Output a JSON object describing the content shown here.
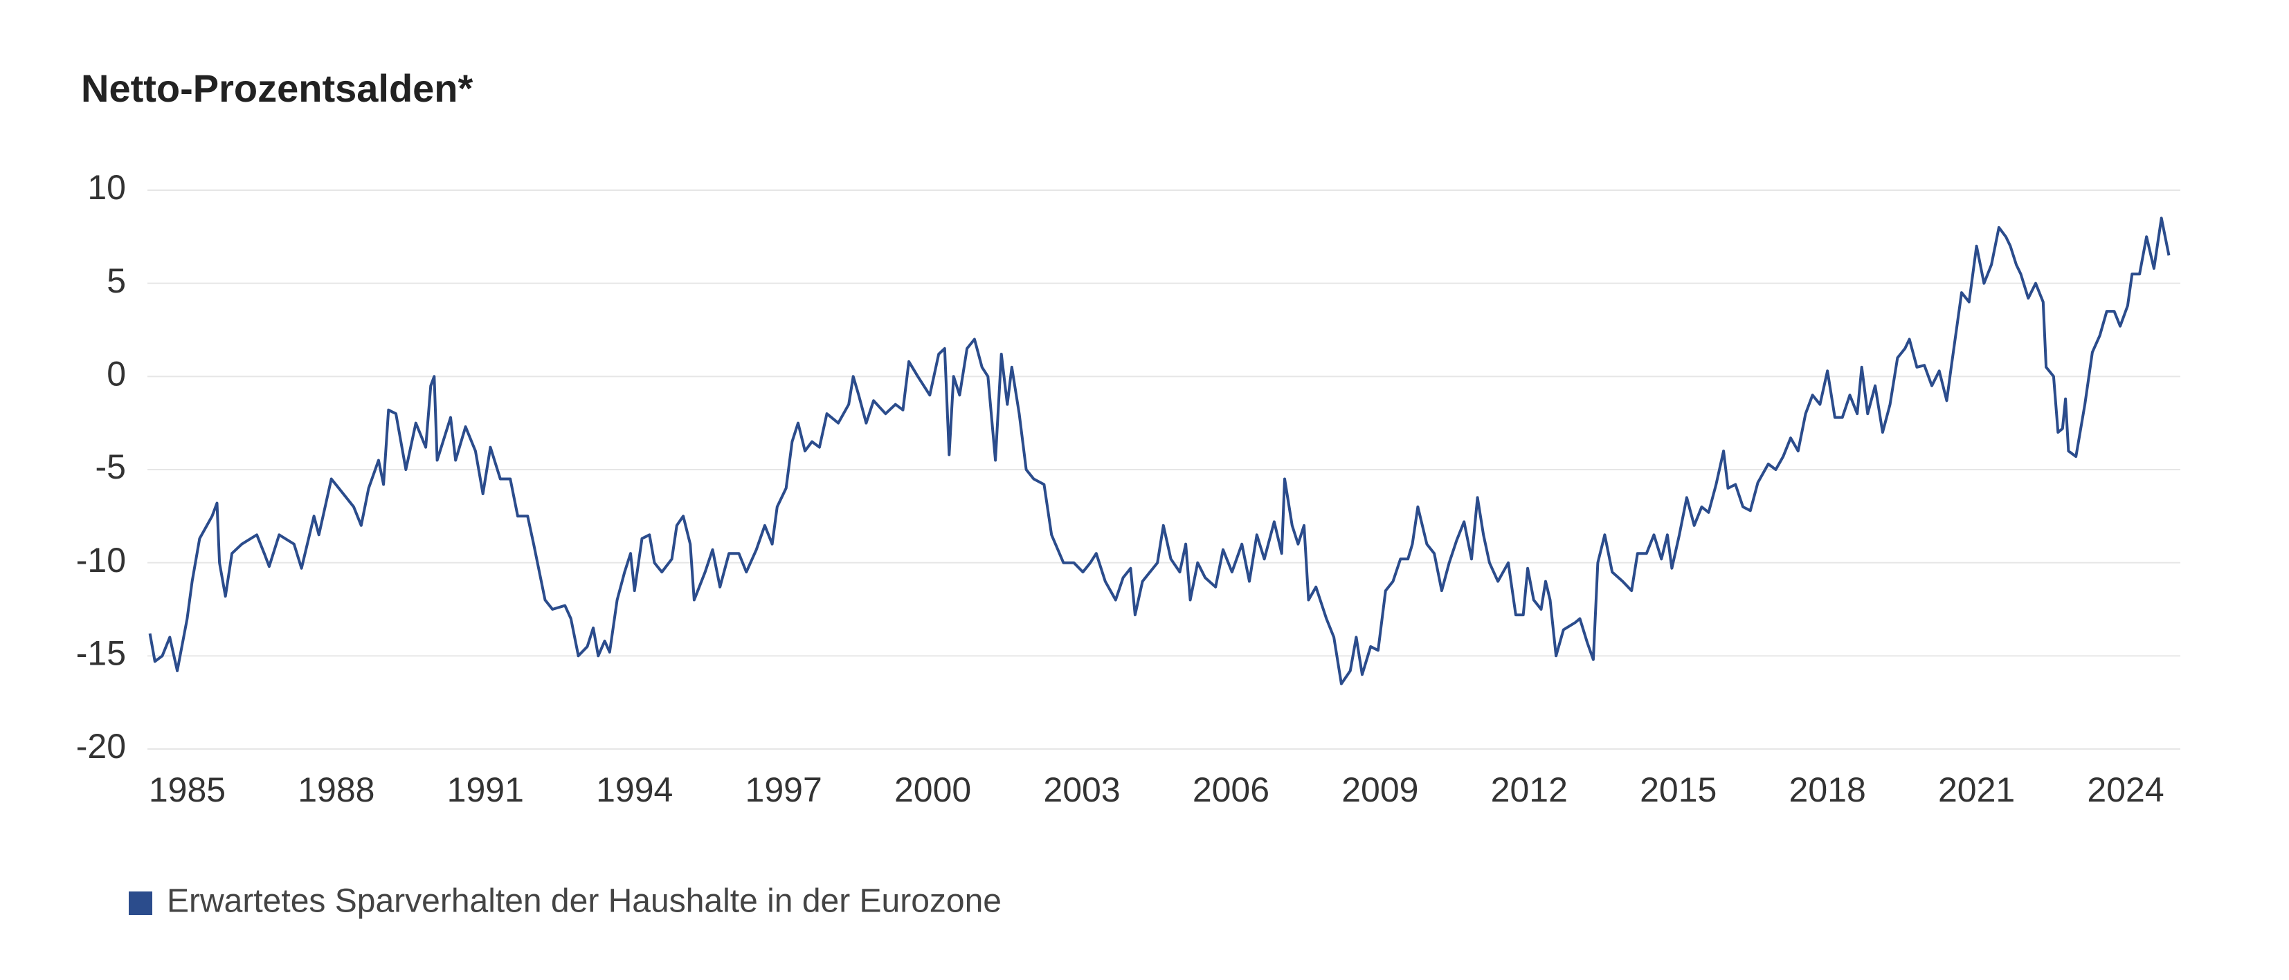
{
  "chart_data": {
    "type": "line",
    "title": "Netto-Prozentsalden*",
    "xlim": [
      1984.2,
      2025.1
    ],
    "xticks": [
      1985,
      1988,
      1991,
      1994,
      1997,
      2000,
      2003,
      2006,
      2009,
      2012,
      2015,
      2018,
      2021,
      2024
    ],
    "ylim": [
      -20,
      10
    ],
    "yticks": [
      10,
      5,
      0,
      -5,
      -10,
      -15,
      -20
    ],
    "grid": true,
    "legend": "bottom-left",
    "x": [
      1984.25,
      1984.35,
      1984.5,
      1984.65,
      1984.8,
      1985.0,
      1985.1,
      1985.25,
      1985.5,
      1985.6,
      1985.65,
      1985.77,
      1985.9,
      1986.1,
      1986.4,
      1986.55,
      1986.65,
      1986.85,
      1987.15,
      1987.3,
      1987.55,
      1987.65,
      1987.9,
      1988.05,
      1988.35,
      1988.5,
      1988.65,
      1988.85,
      1988.95,
      1989.05,
      1989.2,
      1989.4,
      1989.6,
      1989.8,
      1989.9,
      1989.97,
      1990.03,
      1990.3,
      1990.4,
      1990.6,
      1990.8,
      1990.95,
      1991.1,
      1991.3,
      1991.5,
      1991.65,
      1991.85,
      1991.97,
      1992.2,
      1992.35,
      1992.6,
      1992.72,
      1992.87,
      1993.05,
      1993.17,
      1993.27,
      1993.4,
      1993.5,
      1993.65,
      1993.8,
      1993.92,
      1994.0,
      1994.15,
      1994.3,
      1994.4,
      1994.55,
      1994.75,
      1994.85,
      1994.98,
      1995.12,
      1995.2,
      1995.42,
      1995.57,
      1995.72,
      1995.9,
      1996.1,
      1996.25,
      1996.45,
      1996.62,
      1996.77,
      1996.87,
      1997.05,
      1997.17,
      1997.29,
      1997.43,
      1997.57,
      1997.72,
      1997.87,
      1998.1,
      1998.31,
      1998.4,
      1998.51,
      1998.66,
      1998.81,
      1999.05,
      1999.25,
      1999.4,
      1999.52,
      1999.7,
      1999.94,
      2000.12,
      2000.24,
      2000.33,
      2000.42,
      2000.54,
      2000.69,
      2000.84,
      2000.99,
      2001.11,
      2001.26,
      2001.38,
      2001.5,
      2001.59,
      2001.74,
      2001.88,
      2002.03,
      2002.24,
      2002.39,
      2002.63,
      2002.84,
      2003.02,
      2003.17,
      2003.29,
      2003.47,
      2003.68,
      2003.83,
      2003.98,
      2004.07,
      2004.22,
      2004.37,
      2004.52,
      2004.64,
      2004.79,
      2004.97,
      2005.09,
      2005.18,
      2005.33,
      2005.48,
      2005.69,
      2005.84,
      2006.02,
      2006.22,
      2006.37,
      2006.52,
      2006.67,
      2006.87,
      2007.02,
      2007.08,
      2007.23,
      2007.35,
      2007.47,
      2007.56,
      2007.71,
      2007.92,
      2008.07,
      2008.22,
      2008.4,
      2008.52,
      2008.64,
      2008.81,
      2008.96,
      2009.11,
      2009.26,
      2009.41,
      2009.56,
      2009.65,
      2009.76,
      2009.94,
      2010.09,
      2010.24,
      2010.39,
      2010.54,
      2010.69,
      2010.84,
      2010.96,
      2011.08,
      2011.2,
      2011.37,
      2011.58,
      2011.73,
      2011.88,
      2011.97,
      2012.09,
      2012.24,
      2012.33,
      2012.42,
      2012.54,
      2012.69,
      2012.93,
      2013.02,
      2013.17,
      2013.29,
      2013.38,
      2013.52,
      2013.67,
      2013.88,
      2014.06,
      2014.18,
      2014.36,
      2014.51,
      2014.66,
      2014.78,
      2014.87,
      2015.02,
      2015.17,
      2015.32,
      2015.47,
      2015.61,
      2015.76,
      2015.91,
      2016.0,
      2016.15,
      2016.3,
      2016.45,
      2016.6,
      2016.81,
      2016.96,
      2017.11,
      2017.26,
      2017.41,
      2017.56,
      2017.7,
      2017.85,
      2018.0,
      2018.15,
      2018.3,
      2018.45,
      2018.6,
      2018.69,
      2018.81,
      2018.96,
      2019.11,
      2019.26,
      2019.41,
      2019.56,
      2019.65,
      2019.8,
      2019.95,
      2020.1,
      2020.25,
      2020.4,
      2020.49,
      2020.7,
      2020.85,
      2021.0,
      2021.15,
      2021.3,
      2021.45,
      2021.59,
      2021.68,
      2021.8,
      2021.89,
      2022.04,
      2022.19,
      2022.34,
      2022.4,
      2022.55,
      2022.64,
      2022.73,
      2022.79,
      2022.85,
      2023.0,
      2023.18,
      2023.33,
      2023.48,
      2023.62,
      2023.77,
      2023.89,
      2024.04,
      2024.13,
      2024.28,
      2024.42,
      2024.57,
      2024.72,
      2024.87
    ],
    "series": [
      {
        "name": "Erwartetes Sparverhalten der Haushalte in der Eurozone",
        "color": "#2b4c8c",
        "values": [
          -13.8,
          -15.3,
          -15,
          -14,
          -15.8,
          -13,
          -11,
          -8.7,
          -7.5,
          -6.8,
          -10,
          -11.8,
          -9.5,
          -9,
          -8.5,
          -9.5,
          -10.2,
          -8.5,
          -9,
          -10.3,
          -7.5,
          -8.5,
          -5.5,
          -6,
          -7,
          -8,
          -6,
          -4.5,
          -5.8,
          -1.8,
          -2,
          -5,
          -2.5,
          -3.8,
          -0.5,
          0,
          -4.5,
          -2.2,
          -4.5,
          -2.7,
          -4,
          -6.3,
          -3.8,
          -5.5,
          -5.5,
          -7.5,
          -7.5,
          -9,
          -12,
          -12.5,
          -12.3,
          -13,
          -15,
          -14.5,
          -13.5,
          -15,
          -14.2,
          -14.8,
          -12,
          -10.5,
          -9.5,
          -11.5,
          -8.7,
          -8.5,
          -10,
          -10.5,
          -9.8,
          -8,
          -7.5,
          -9,
          -12,
          -10.5,
          -9.3,
          -11.3,
          -9.5,
          -9.5,
          -10.5,
          -9.3,
          -8,
          -9,
          -7,
          -6,
          -3.5,
          -2.5,
          -4,
          -3.5,
          -3.8,
          -2,
          -2.5,
          -1.5,
          0,
          -1,
          -2.5,
          -1.3,
          -2,
          -1.5,
          -1.8,
          0.8,
          0,
          -1,
          1.2,
          1.5,
          -4.2,
          0,
          -1,
          1.5,
          2,
          0.5,
          0,
          -4.5,
          1.2,
          -1.5,
          0.5,
          -2,
          -5,
          -5.5,
          -5.8,
          -8.5,
          -10,
          -10,
          -10.5,
          -10,
          -9.5,
          -11,
          -12,
          -10.8,
          -10.3,
          -12.8,
          -11,
          -10.5,
          -10,
          -8,
          -9.8,
          -10.5,
          -9,
          -12,
          -10,
          -10.8,
          -11.3,
          -9.3,
          -10.5,
          -9,
          -11,
          -8.5,
          -9.8,
          -7.8,
          -9.5,
          -5.5,
          -8,
          -9,
          -8,
          -12,
          -11.3,
          -13,
          -14,
          -16.5,
          -15.8,
          -14,
          -16,
          -14.5,
          -14.7,
          -11.5,
          -11,
          -9.8,
          -9.8,
          -9,
          -7,
          -9,
          -9.5,
          -11.5,
          -10,
          -8.8,
          -7.8,
          -9.8,
          -6.5,
          -8.5,
          -10,
          -11,
          -10,
          -12.8,
          -12.8,
          -10.3,
          -12,
          -12.5,
          -11,
          -12,
          -15,
          -13.6,
          -13.2,
          -13,
          -14.3,
          -15.2,
          -10,
          -8.5,
          -10.5,
          -11,
          -11.5,
          -9.5,
          -9.5,
          -8.5,
          -9.8,
          -8.5,
          -10.3,
          -8.5,
          -6.5,
          -8,
          -7,
          -7.3,
          -5.8,
          -4,
          -6,
          -5.8,
          -7,
          -7.2,
          -5.7,
          -4.7,
          -5,
          -4.3,
          -3.3,
          -4,
          -2,
          -1,
          -1.5,
          0.3,
          -2.2,
          -2.2,
          -1,
          -2,
          0.5,
          -2,
          -0.5,
          -3,
          -1.5,
          1,
          1.5,
          2,
          0.5,
          0.6,
          -0.5,
          0.3,
          -1.3,
          0.5,
          4.5,
          4,
          7,
          5,
          6,
          8,
          7.5,
          7,
          6,
          5.5,
          4.2,
          5,
          4,
          0.5,
          0,
          -3,
          -2.8,
          -1.2,
          -4,
          -4.3,
          -1.5,
          1.3,
          2.2,
          3.5,
          3.5,
          2.7,
          3.8,
          5.5,
          5.5,
          7.5,
          5.8,
          8.5,
          6.5
        ]
      }
    ]
  }
}
